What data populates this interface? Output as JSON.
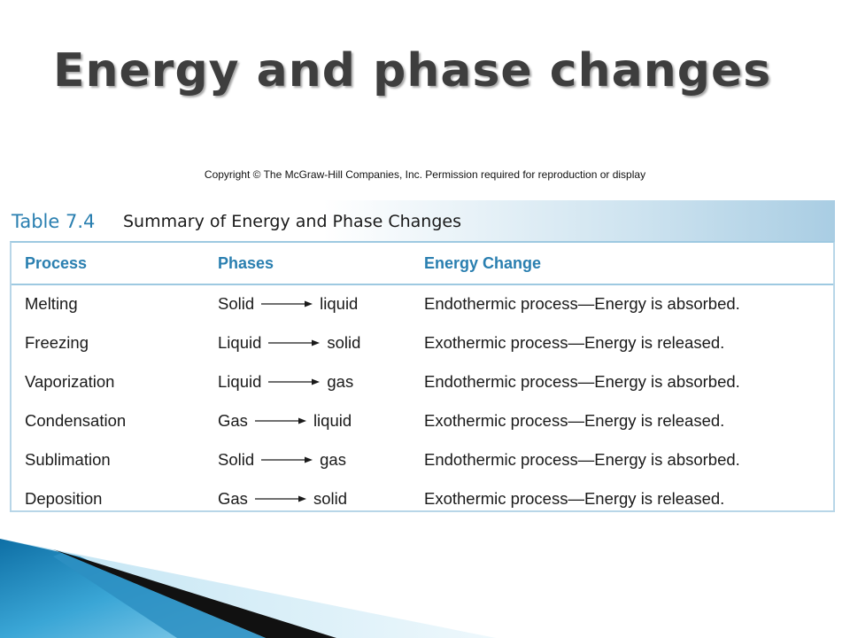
{
  "title": "Energy and phase changes",
  "copyright": "Copyright © The McGraw-Hill Companies, Inc. Permission required for reproduction or display",
  "table": {
    "number": "Table 7.4",
    "caption": "Summary of Energy and Phase Changes",
    "headers": [
      "Process",
      "Phases",
      "Energy Change"
    ],
    "rows": [
      {
        "process": "Melting",
        "from": "Solid",
        "to": "liquid",
        "energy": "Endothermic process—Energy is absorbed."
      },
      {
        "process": "Freezing",
        "from": "Liquid",
        "to": "solid",
        "energy": "Exothermic process—Energy is released."
      },
      {
        "process": "Vaporization",
        "from": "Liquid",
        "to": "gas",
        "energy": "Endothermic process—Energy is absorbed."
      },
      {
        "process": "Condensation",
        "from": "Gas",
        "to": "liquid",
        "energy": "Exothermic process—Energy is released."
      },
      {
        "process": "Sublimation",
        "from": "Solid",
        "to": "gas",
        "energy": "Endothermic process—Energy is absorbed."
      },
      {
        "process": "Deposition",
        "from": "Gas",
        "to": "solid",
        "energy": "Exothermic process—Energy is released."
      }
    ]
  },
  "colors": {
    "accent": "#2a7fb0",
    "header_band": "#a9cde3",
    "decor_blue": "#1a8fc4",
    "decor_dark": "#111111"
  }
}
